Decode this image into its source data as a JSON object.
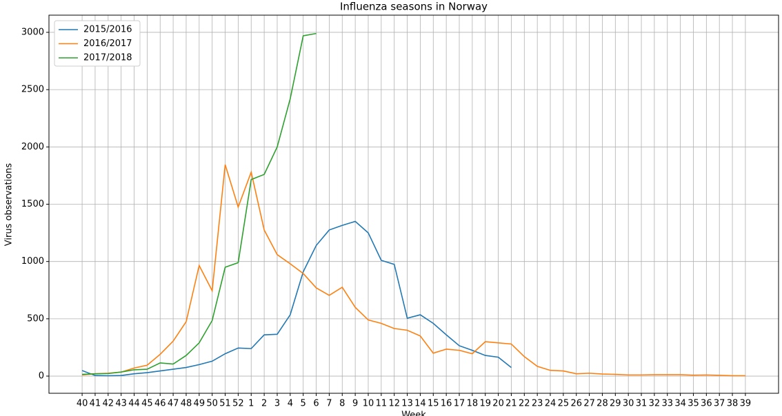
{
  "chart_data": {
    "type": "line",
    "title": "Influenza seasons in Norway",
    "x_label": "Week",
    "y_label": "Virus observations",
    "categories": [
      "40",
      "41",
      "42",
      "43",
      "44",
      "45",
      "46",
      "47",
      "48",
      "49",
      "50",
      "51",
      "52",
      "1",
      "2",
      "3",
      "4",
      "5",
      "6",
      "7",
      "8",
      "9",
      "10",
      "11",
      "12",
      "13",
      "14",
      "15",
      "16",
      "17",
      "18",
      "19",
      "20",
      "21",
      "22",
      "23",
      "24",
      "25",
      "26",
      "27",
      "28",
      "29",
      "30",
      "31",
      "32",
      "33",
      "34",
      "35",
      "36",
      "37",
      "38",
      "39"
    ],
    "series": [
      {
        "name": "2015/2016",
        "color": "#1f77b4",
        "values": [
          48,
          5,
          3,
          5,
          20,
          30,
          45,
          60,
          75,
          100,
          130,
          195,
          245,
          240,
          360,
          365,
          535,
          910,
          1140,
          1275,
          1315,
          1350,
          1250,
          1010,
          975,
          505,
          535,
          460,
          360,
          265,
          225,
          180,
          165,
          75,
          null,
          null,
          null,
          null,
          null,
          null,
          null,
          null,
          null,
          null,
          null,
          null,
          null,
          null,
          null,
          null,
          null,
          null
        ]
      },
      {
        "name": "2016/2017",
        "color": "#ff7f0e",
        "values": [
          10,
          20,
          25,
          35,
          70,
          95,
          190,
          305,
          475,
          965,
          745,
          1845,
          1475,
          1780,
          1275,
          1060,
          980,
          895,
          770,
          705,
          775,
          600,
          490,
          460,
          415,
          400,
          350,
          200,
          235,
          225,
          195,
          300,
          290,
          280,
          170,
          85,
          50,
          45,
          20,
          25,
          18,
          15,
          10,
          10,
          12,
          12,
          12,
          8,
          10,
          7,
          3,
          3
        ]
      },
      {
        "name": "2017/2018",
        "color": "#2ca02c",
        "values": [
          15,
          20,
          22,
          35,
          55,
          60,
          115,
          105,
          180,
          290,
          485,
          950,
          990,
          1715,
          1760,
          2000,
          2420,
          2970,
          2990,
          null,
          null,
          null,
          null,
          null,
          null,
          null,
          null,
          null,
          null,
          null,
          null,
          null,
          null,
          null,
          null,
          null,
          null,
          null,
          null,
          null,
          null,
          null,
          null,
          null,
          null,
          null,
          null,
          null,
          null,
          null,
          null,
          null
        ]
      }
    ],
    "ylim": [
      -150,
      3150
    ],
    "yticks": [
      0,
      500,
      1000,
      1500,
      2000,
      2500,
      3000
    ],
    "grid": true,
    "legend": "upper-left"
  }
}
